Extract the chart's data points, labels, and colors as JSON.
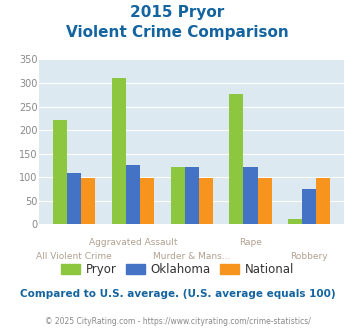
{
  "title_line1": "2015 Pryor",
  "title_line2": "Violent Crime Comparison",
  "categories": [
    "All Violent Crime",
    "Aggravated Assault",
    "Murder & Mans...",
    "Rape",
    "Robbery"
  ],
  "top_xlabels": [
    "",
    "Aggravated Assault",
    "",
    "Rape",
    ""
  ],
  "bottom_xlabels": [
    "All Violent Crime",
    "",
    "Murder & Mans...",
    "",
    "Robbery"
  ],
  "pryor": [
    222,
    310,
    122,
    277,
    12
  ],
  "oklahoma": [
    109,
    125,
    122,
    122,
    75
  ],
  "national": [
    99,
    99,
    99,
    99,
    99
  ],
  "bar_colors": {
    "pryor": "#8dc63f",
    "oklahoma": "#4472c4",
    "national": "#f7941d"
  },
  "ylim": [
    0,
    350
  ],
  "yticks": [
    0,
    50,
    100,
    150,
    200,
    250,
    300,
    350
  ],
  "bg_color": "#dce9f0",
  "grid_color": "#ffffff",
  "title_color": "#1464a0",
  "footer_note": "Compared to U.S. average. (U.S. average equals 100)",
  "copyright": "© 2025 CityRating.com - https://www.cityrating.com/crime-statistics/",
  "legend_labels": [
    "Pryor",
    "Oklahoma",
    "National"
  ],
  "xlabel_color": "#b0a090",
  "legend_text_color": "#333333",
  "footer_color": "#1464a0",
  "copyright_color": "#888888"
}
